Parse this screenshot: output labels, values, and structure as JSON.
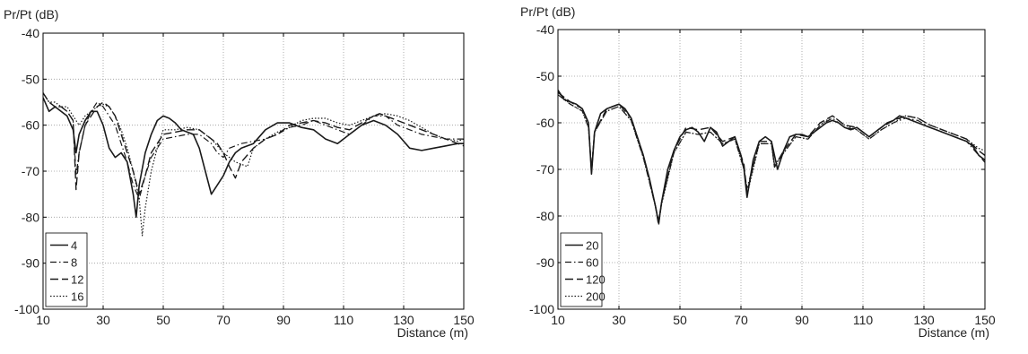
{
  "chart_data": [
    {
      "type": "line",
      "ylabel": "Pr/Pt (dB)",
      "xlabel": "Distance (m)",
      "xlim": [
        10,
        150
      ],
      "ylim": [
        -100,
        -40
      ],
      "xticks": [
        10,
        30,
        50,
        70,
        90,
        110,
        130,
        150
      ],
      "yticks": [
        -40,
        -50,
        -60,
        -70,
        -80,
        -90,
        -100
      ],
      "grid": true,
      "legend_position": "bottom-left",
      "series": [
        {
          "name": "4",
          "style": "solid",
          "x": [
            10,
            12,
            14,
            16,
            18,
            20,
            21,
            22,
            24,
            26,
            28,
            30,
            32,
            34,
            36,
            38,
            40,
            41,
            42,
            44,
            46,
            48,
            50,
            52,
            54,
            56,
            58,
            60,
            62,
            64,
            66,
            68,
            70,
            72,
            74,
            76,
            78,
            80,
            84,
            88,
            92,
            96,
            100,
            104,
            108,
            112,
            116,
            120,
            124,
            128,
            132,
            136,
            140,
            144,
            148,
            150
          ],
          "y": [
            -54,
            -57,
            -56,
            -57,
            -58,
            -61,
            -66,
            -62,
            -59,
            -57,
            -57,
            -60,
            -65,
            -67,
            -66,
            -68,
            -75,
            -80,
            -73,
            -66,
            -62,
            -59,
            -58,
            -58.5,
            -59.5,
            -61,
            -61.5,
            -62,
            -65,
            -70,
            -75,
            -73,
            -71,
            -68,
            -66,
            -65,
            -64.5,
            -64,
            -61,
            -59.5,
            -59.5,
            -60.5,
            -61,
            -63,
            -64,
            -62,
            -60,
            -59,
            -60,
            -62,
            -65,
            -65.5,
            -65,
            -64.5,
            -64,
            -64
          ]
        },
        {
          "name": "8",
          "style": "dashdot",
          "x": [
            10,
            12,
            14,
            16,
            18,
            20,
            21,
            22,
            24,
            26,
            28,
            30,
            32,
            34,
            36,
            38,
            40,
            42,
            44,
            46,
            48,
            50,
            54,
            58,
            62,
            66,
            68,
            70,
            72,
            76,
            80,
            84,
            88,
            92,
            96,
            100,
            104,
            108,
            112,
            116,
            120,
            124,
            128,
            132,
            136,
            140,
            144,
            148,
            150
          ],
          "y": [
            -53,
            -55,
            -56,
            -56,
            -57,
            -59,
            -71,
            -66,
            -60,
            -57,
            -55,
            -56,
            -58,
            -60,
            -64,
            -68,
            -73,
            -76,
            -71,
            -67,
            -65,
            -63,
            -62.5,
            -62,
            -62,
            -64,
            -66,
            -67,
            -65,
            -64,
            -63.5,
            -63,
            -62,
            -60.5,
            -60,
            -59,
            -60,
            -61,
            -62,
            -60,
            -58,
            -58,
            -60,
            -61,
            -62,
            -62.5,
            -63,
            -63,
            -63
          ]
        },
        {
          "name": "12",
          "style": "dashed",
          "x": [
            10,
            12,
            14,
            16,
            18,
            20,
            21,
            22,
            24,
            26,
            28,
            30,
            32,
            34,
            36,
            38,
            40,
            42,
            44,
            46,
            48,
            50,
            54,
            58,
            62,
            66,
            68,
            70,
            72,
            74,
            76,
            80,
            84,
            88,
            92,
            96,
            100,
            104,
            108,
            112,
            116,
            120,
            122,
            124,
            128,
            132,
            136,
            140,
            144,
            148,
            150
          ],
          "y": [
            -53,
            -55,
            -56,
            -56,
            -57,
            -59,
            -74,
            -66,
            -60,
            -58,
            -56,
            -55,
            -56,
            -58,
            -62,
            -66,
            -70,
            -75,
            -71,
            -66,
            -64,
            -62,
            -61.5,
            -61,
            -61,
            -63,
            -64,
            -66,
            -69,
            -71.5,
            -68,
            -65,
            -63,
            -62,
            -60,
            -59.5,
            -59,
            -59.5,
            -60.5,
            -61,
            -59.5,
            -58,
            -57.5,
            -58,
            -59,
            -60,
            -61,
            -62,
            -63,
            -64,
            -64.5
          ]
        },
        {
          "name": "16",
          "style": "dotted",
          "x": [
            10,
            12,
            14,
            16,
            18,
            20,
            22,
            24,
            26,
            28,
            30,
            32,
            34,
            36,
            38,
            40,
            42,
            43,
            44,
            46,
            48,
            50,
            54,
            58,
            62,
            66,
            70,
            74,
            78,
            80,
            84,
            88,
            92,
            96,
            100,
            104,
            108,
            112,
            116,
            120,
            124,
            128,
            132,
            136,
            140,
            144,
            148,
            150
          ],
          "y": [
            -53,
            -55,
            -55,
            -56,
            -56,
            -58,
            -60,
            -58,
            -57,
            -56,
            -55.5,
            -56,
            -58,
            -61,
            -65,
            -70,
            -76,
            -84,
            -78,
            -70,
            -65,
            -61,
            -61,
            -60.5,
            -61,
            -63,
            -66,
            -68,
            -69,
            -65,
            -63,
            -61.5,
            -60.5,
            -59,
            -58.5,
            -58.5,
            -59.5,
            -60,
            -59,
            -58,
            -57.5,
            -58,
            -59,
            -60.5,
            -62,
            -63,
            -63.5,
            -63
          ]
        }
      ]
    },
    {
      "type": "line",
      "ylabel": "Pr/Pt (dB)",
      "xlabel": "Distance (m)",
      "xlim": [
        10,
        150
      ],
      "ylim": [
        -100,
        -40
      ],
      "xticks": [
        10,
        30,
        50,
        70,
        90,
        110,
        130,
        150
      ],
      "yticks": [
        -40,
        -50,
        -60,
        -70,
        -80,
        -90,
        -100
      ],
      "grid": true,
      "legend_position": "bottom-left",
      "series": [
        {
          "name": "20",
          "style": "solid",
          "x": [
            10,
            12,
            14,
            16,
            18,
            20,
            21,
            22,
            24,
            26,
            28,
            30,
            32,
            34,
            36,
            38,
            40,
            42,
            43,
            44,
            46,
            48,
            50,
            52,
            54,
            56,
            58,
            60,
            62,
            64,
            66,
            68,
            70,
            71,
            72,
            74,
            76,
            78,
            80,
            81,
            82,
            84,
            86,
            88,
            90,
            92,
            94,
            96,
            98,
            100,
            102,
            104,
            106,
            108,
            110,
            112,
            114,
            116,
            118,
            120,
            122,
            124,
            126,
            128,
            130,
            132,
            134,
            136,
            138,
            140,
            142,
            144,
            146,
            148,
            150
          ],
          "y": [
            -53,
            -55,
            -55.5,
            -56,
            -57,
            -60,
            -71,
            -62,
            -58,
            -57,
            -56.5,
            -56,
            -57,
            -59,
            -63,
            -67,
            -72,
            -78,
            -81.5,
            -77,
            -70,
            -66,
            -63,
            -61.5,
            -61,
            -62,
            -64,
            -61,
            -62,
            -65,
            -64,
            -63,
            -67,
            -70,
            -76,
            -68,
            -64,
            -63,
            -64,
            -67,
            -70,
            -66,
            -63,
            -62.5,
            -62.5,
            -63,
            -62,
            -61,
            -60,
            -59.5,
            -60,
            -61,
            -61.5,
            -61,
            -62,
            -63,
            -62,
            -61,
            -60,
            -59.5,
            -58.5,
            -59,
            -59.5,
            -60,
            -60.5,
            -61,
            -61.5,
            -62,
            -62.5,
            -63,
            -63.5,
            -64,
            -65,
            -67,
            -68
          ]
        },
        {
          "name": "60",
          "style": "dashdot",
          "x": [
            10,
            14,
            18,
            20,
            21,
            22,
            26,
            30,
            34,
            38,
            42,
            43,
            44,
            48,
            52,
            56,
            60,
            64,
            68,
            71,
            72,
            76,
            80,
            81,
            84,
            88,
            92,
            96,
            100,
            104,
            108,
            112,
            116,
            120,
            124,
            128,
            132,
            136,
            140,
            144,
            148,
            150
          ],
          "y": [
            -54,
            -56,
            -57.5,
            -61,
            -70,
            -62,
            -57.5,
            -56.5,
            -59.5,
            -67.5,
            -78,
            -81,
            -77,
            -66.5,
            -62,
            -62.5,
            -62,
            -64.5,
            -63.5,
            -70,
            -74,
            -64.5,
            -64.5,
            -69,
            -66.5,
            -63,
            -63.5,
            -60.5,
            -59,
            -61,
            -61.5,
            -63.5,
            -61.5,
            -60,
            -59,
            -59.5,
            -61,
            -62,
            -63,
            -64,
            -67,
            -68.5
          ]
        },
        {
          "name": "120",
          "style": "dashed",
          "x": [
            10,
            14,
            18,
            20,
            21,
            22,
            26,
            30,
            34,
            38,
            42,
            43,
            44,
            48,
            52,
            56,
            60,
            64,
            68,
            71,
            72,
            76,
            80,
            81,
            84,
            88,
            92,
            96,
            100,
            104,
            108,
            112,
            116,
            120,
            124,
            128,
            132,
            136,
            140,
            144,
            148,
            150
          ],
          "y": [
            -53.5,
            -55.5,
            -57,
            -60,
            -70.5,
            -62,
            -57,
            -56,
            -59,
            -67,
            -78,
            -82,
            -77,
            -66,
            -61,
            -61.5,
            -61,
            -64,
            -63,
            -69,
            -75,
            -64,
            -64,
            -69.5,
            -66,
            -62.5,
            -63,
            -60,
            -58.5,
            -60.5,
            -61,
            -63,
            -61,
            -59.5,
            -58.5,
            -59,
            -60.5,
            -61.5,
            -62.5,
            -63.5,
            -66,
            -67
          ]
        },
        {
          "name": "200",
          "style": "dotted",
          "x": [
            10,
            14,
            18,
            20,
            21,
            22,
            26,
            30,
            34,
            38,
            42,
            43,
            44,
            48,
            52,
            56,
            60,
            64,
            68,
            71,
            72,
            76,
            80,
            81,
            84,
            88,
            92,
            96,
            100,
            104,
            108,
            112,
            116,
            120,
            124,
            128,
            132,
            136,
            140,
            144,
            148,
            150
          ],
          "y": [
            -53.5,
            -56,
            -57.5,
            -61,
            -70,
            -62,
            -57.5,
            -56.5,
            -59.5,
            -67.5,
            -78,
            -81.5,
            -77.5,
            -66.5,
            -62,
            -62.5,
            -62,
            -64.5,
            -63.5,
            -70,
            -75.5,
            -64.5,
            -64.5,
            -69.5,
            -66.5,
            -63,
            -63.5,
            -60.5,
            -58.5,
            -60.5,
            -61.5,
            -63.5,
            -61.5,
            -60,
            -58.5,
            -59,
            -60.5,
            -61.5,
            -62.5,
            -63.5,
            -65.5,
            -66
          ]
        }
      ]
    }
  ]
}
